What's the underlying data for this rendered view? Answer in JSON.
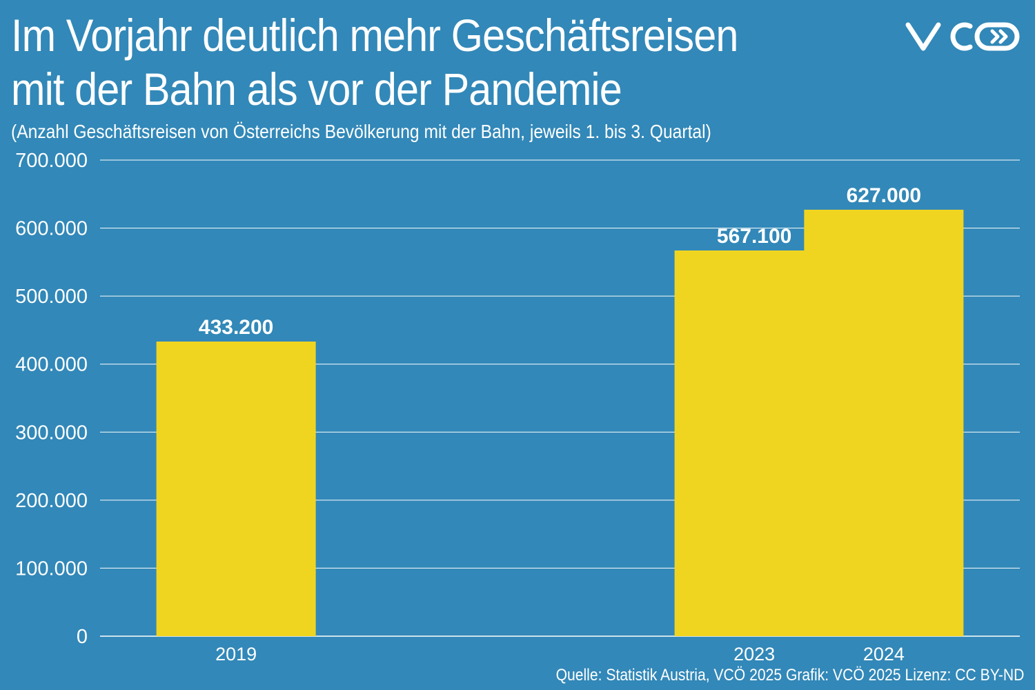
{
  "header": {
    "title_lines": [
      "Im Vorjahr deutlich mehr Geschäftsreisen",
      "mit der Bahn als vor der Pandemie"
    ],
    "subtitle": "(Anzahl Geschäftsreisen von Österreichs Bevölkerung mit der Bahn, jeweils 1. bis 3. Quartal)",
    "logo": "VCÖ"
  },
  "footer": {
    "source": "Quelle: Statistik Austria, VCÖ 2025 Grafik: VCÖ 2025 Lizenz: CC BY-ND"
  },
  "colors": {
    "background": "#3288b8",
    "bar": "#f0d520",
    "text": "#ffffff",
    "grid": "#ffffff"
  },
  "chart_data": {
    "type": "bar",
    "title": "Im Vorjahr deutlich mehr Geschäftsreisen mit der Bahn als vor der Pandemie",
    "subtitle": "(Anzahl Geschäftsreisen von Österreichs Bevölkerung mit der Bahn, jeweils 1. bis 3. Quartal)",
    "categories": [
      "2019",
      "2023",
      "2024"
    ],
    "x": [
      2019,
      2023,
      2024
    ],
    "values": [
      433200,
      567100,
      627000
    ],
    "data_labels": [
      "433.200",
      "567.100",
      "627.000"
    ],
    "ylim": [
      0,
      700000
    ],
    "yticks": [
      0,
      100000,
      200000,
      300000,
      400000,
      500000,
      600000,
      700000
    ],
    "ytick_labels": [
      "0",
      "100.000",
      "200.000",
      "300.000",
      "400.000",
      "500.000",
      "600.000",
      "700.000"
    ],
    "xlabel": "",
    "ylabel": "",
    "grid": true,
    "legend": "none"
  }
}
